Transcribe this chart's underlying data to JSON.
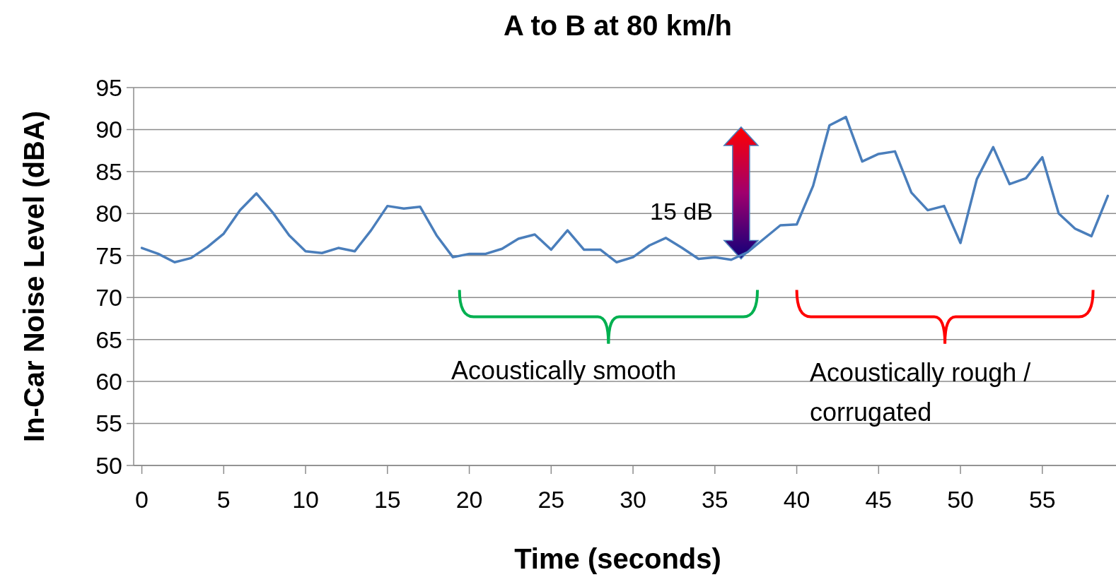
{
  "chart_data": {
    "type": "line",
    "title": "A to B at 80 km/h",
    "xlabel": "Time (seconds)",
    "ylabel": "In-Car Noise Level (dBA)",
    "x": [
      0,
      1,
      2,
      3,
      4,
      5,
      6,
      7,
      8,
      9,
      10,
      11,
      12,
      13,
      14,
      15,
      16,
      17,
      18,
      19,
      20,
      21,
      22,
      23,
      24,
      25,
      26,
      27,
      28,
      29,
      30,
      31,
      32,
      33,
      34,
      35,
      36,
      37,
      38,
      39,
      40,
      41,
      42,
      43,
      44,
      45,
      46,
      47,
      48,
      49,
      50,
      51,
      52,
      53,
      54,
      55,
      56,
      57,
      58,
      59
    ],
    "series": [
      {
        "color": "#4a7ebb",
        "values": [
          75.9,
          75.2,
          74.2,
          74.7,
          76.0,
          77.6,
          80.4,
          82.4,
          80.1,
          77.4,
          75.5,
          75.3,
          75.9,
          75.5,
          78.0,
          80.9,
          80.6,
          80.8,
          77.4,
          74.8,
          75.2,
          75.2,
          75.8,
          77.0,
          77.5,
          75.7,
          78.0,
          75.7,
          75.7,
          74.2,
          74.8,
          76.2,
          77.1,
          75.9,
          74.6,
          74.8,
          74.5,
          75.4,
          77.0,
          78.6,
          78.7,
          83.3,
          90.5,
          91.5,
          86.2,
          87.1,
          87.4,
          82.5,
          80.4,
          80.9,
          76.5,
          84.1,
          87.9,
          83.5,
          84.2,
          86.7,
          80.0,
          78.2,
          77.3,
          82.1
        ]
      }
    ],
    "xlim": [
      -0.5,
      59.5
    ],
    "xticks": [
      0,
      5,
      10,
      15,
      20,
      25,
      30,
      35,
      40,
      45,
      50,
      55
    ],
    "ylim": [
      50,
      95
    ],
    "yticks": [
      50,
      55,
      60,
      65,
      70,
      75,
      80,
      85,
      90,
      95
    ],
    "grid": "y",
    "marker": "none",
    "line_style": "solid",
    "annotations": [
      "15 dB",
      "Acoustically smooth",
      "Acoustically rough / corrugated"
    ]
  }
}
